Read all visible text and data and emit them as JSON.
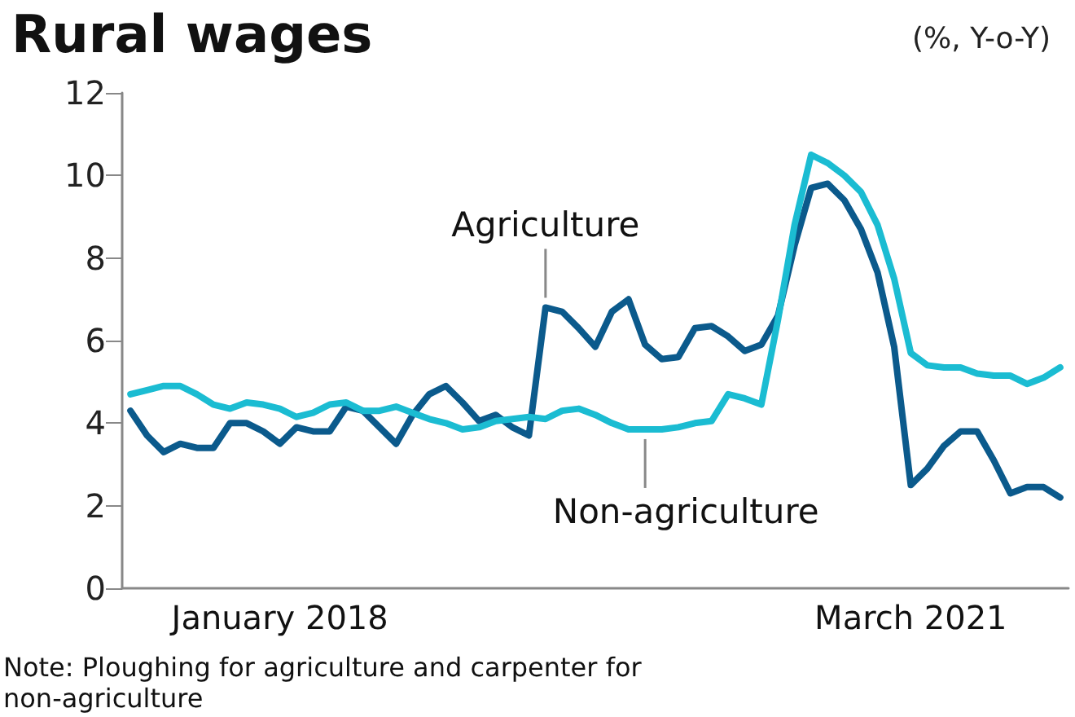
{
  "chart_data": {
    "type": "line",
    "title": "Rural wages",
    "subtitle": "(%, Y-o-Y)",
    "categories": [
      null,
      null,
      null,
      null,
      null,
      null,
      null,
      null,
      null,
      "January 2018",
      null,
      null,
      null,
      null,
      null,
      null,
      null,
      null,
      null,
      null,
      null,
      null,
      null,
      null,
      null,
      null,
      null,
      null,
      null,
      null,
      null,
      null,
      null,
      null,
      null,
      null,
      null,
      null,
      null,
      null,
      null,
      null,
      null,
      null,
      null,
      null,
      null,
      "March 2021",
      null,
      null,
      null,
      null,
      null,
      null,
      null,
      null,
      null
    ],
    "series": [
      {
        "name": "Agriculture",
        "color": "#0b5a8c",
        "values": [
          4.3,
          3.7,
          3.3,
          3.5,
          3.4,
          3.4,
          4.0,
          4.0,
          3.8,
          3.5,
          3.9,
          3.8,
          3.8,
          4.4,
          4.3,
          3.9,
          3.5,
          4.2,
          4.7,
          4.9,
          4.5,
          4.05,
          4.2,
          3.9,
          3.7,
          6.8,
          6.7,
          6.3,
          5.85,
          6.7,
          7.0,
          5.9,
          5.55,
          5.6,
          6.3,
          6.35,
          6.1,
          5.75,
          5.9,
          6.6,
          8.3,
          9.7,
          9.8,
          9.4,
          8.7,
          7.65,
          5.85,
          2.5,
          2.9,
          3.45,
          3.8,
          3.8,
          3.1,
          2.3,
          2.45,
          2.45,
          2.2
        ]
      },
      {
        "name": "Non-agriculture",
        "color": "#1bbcd2",
        "values": [
          4.7,
          4.8,
          4.9,
          4.9,
          4.7,
          4.45,
          4.35,
          4.5,
          4.45,
          4.35,
          4.15,
          4.25,
          4.45,
          4.5,
          4.3,
          4.3,
          4.4,
          4.25,
          4.1,
          4.0,
          3.85,
          3.9,
          4.05,
          4.1,
          4.15,
          4.1,
          4.3,
          4.35,
          4.2,
          4.0,
          3.85,
          3.85,
          3.85,
          3.9,
          4.0,
          4.05,
          4.7,
          4.6,
          4.45,
          6.5,
          8.8,
          10.5,
          10.3,
          10.0,
          9.6,
          8.8,
          7.5,
          5.7,
          5.4,
          5.35,
          5.35,
          5.2,
          5.15,
          5.15,
          4.95,
          5.1,
          5.35
        ]
      }
    ],
    "ylim": [
      0,
      12
    ],
    "yticks": [
      0,
      2,
      4,
      6,
      8,
      10,
      12
    ],
    "grid": false,
    "legend": false,
    "marker": "none",
    "line_style": "solid",
    "annotations": [
      "Note: Ploughing for agriculture and carpenter for non-agriculture"
    ]
  }
}
